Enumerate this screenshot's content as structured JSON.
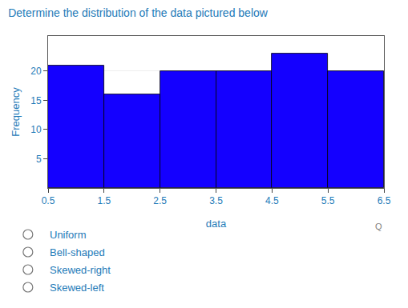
{
  "chart_data": {
    "type": "histogram",
    "title": "Determine the distribution of the data pictured below",
    "x_label": "data",
    "y_label": "Frequency",
    "bins": [
      0.5,
      1.5,
      2.5,
      3.5,
      4.5,
      5.5,
      6.5
    ],
    "values": [
      21,
      16,
      20,
      20,
      23,
      20
    ],
    "color": "#1400ff",
    "xlim": [
      0.5,
      6.5
    ],
    "xticks": [
      0.5,
      1.5,
      2.5,
      3.5,
      4.5,
      5.5,
      6.5
    ],
    "ylim": [
      0,
      26
    ],
    "yticks": [
      5,
      10,
      15,
      20
    ],
    "grid": true,
    "annotations": [
      "Uniform",
      "Bell-shaped",
      "Skewed-right",
      "Skewed-left",
      "Q"
    ]
  }
}
